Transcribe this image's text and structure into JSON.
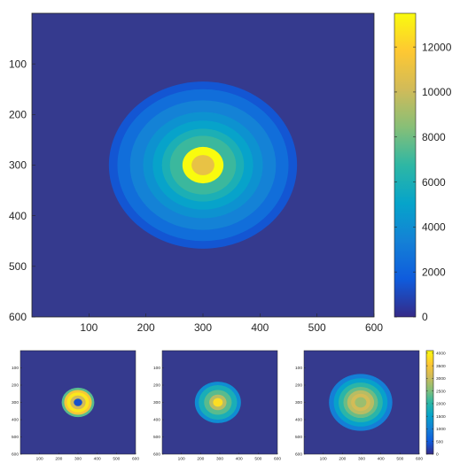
{
  "colors": {
    "background": "#353A8E",
    "colormap": [
      "#352A87",
      "#0F5CDD",
      "#1481D6",
      "#06A4CA",
      "#2EB7A4",
      "#87BF77",
      "#D1BB59",
      "#FEC832",
      "#F9FB0E"
    ]
  },
  "chart_data": [
    {
      "type": "heatmap",
      "description_kind": "radial-intensity",
      "xlim": [
        0,
        600
      ],
      "ylim": [
        0,
        600
      ],
      "y_reversed": true,
      "x_ticks": [
        "100",
        "200",
        "300",
        "400",
        "500",
        "600"
      ],
      "y_ticks": [
        "100",
        "200",
        "300",
        "400",
        "500",
        "600"
      ],
      "clim": [
        0,
        13500
      ],
      "colorbar_ticks": [
        "0",
        "2000",
        "4000",
        "6000",
        "8000",
        "10000",
        "12000"
      ],
      "center": [
        300,
        300
      ],
      "rings": [
        {
          "outer_radius": 165,
          "value": 1500
        },
        {
          "outer_radius": 150,
          "value": 2500
        },
        {
          "outer_radius": 128,
          "value": 3400
        },
        {
          "outer_radius": 105,
          "value": 4200
        },
        {
          "outer_radius": 88,
          "value": 5000
        },
        {
          "outer_radius": 72,
          "value": 6000
        },
        {
          "outer_radius": 58,
          "value": 7000
        },
        {
          "outer_radius": 36,
          "value": 13500
        },
        {
          "outer_radius": 20,
          "value": 11000
        }
      ]
    },
    {
      "type": "heatmap",
      "description_kind": "annulus",
      "xlim": [
        0,
        600
      ],
      "ylim": [
        0,
        600
      ],
      "y_reversed": true,
      "x_ticks": [
        "100",
        "200",
        "300",
        "400",
        "500",
        "600"
      ],
      "y_ticks": [
        "100",
        "200",
        "300",
        "400",
        "500",
        "600"
      ],
      "center": [
        300,
        300
      ],
      "rings": [
        {
          "outer_radius": 85,
          "value": 2300
        },
        {
          "outer_radius": 72,
          "value": 3500
        },
        {
          "outer_radius": 58,
          "value": 3900
        },
        {
          "outer_radius": 40,
          "value": 3100
        },
        {
          "outer_radius": 22,
          "value": 400
        }
      ]
    },
    {
      "type": "heatmap",
      "description_kind": "radial-intensity",
      "xlim": [
        0,
        600
      ],
      "ylim": [
        0,
        600
      ],
      "y_reversed": true,
      "x_ticks": [
        "100",
        "200",
        "300",
        "400",
        "500",
        "600"
      ],
      "y_ticks": [
        "100",
        "200",
        "300",
        "400",
        "500",
        "600"
      ],
      "center": [
        290,
        300
      ],
      "rings": [
        {
          "outer_radius": 120,
          "value": 1200
        },
        {
          "outer_radius": 100,
          "value": 1800
        },
        {
          "outer_radius": 72,
          "value": 2300
        },
        {
          "outer_radius": 45,
          "value": 2900
        },
        {
          "outer_radius": 25,
          "value": 3800
        }
      ]
    },
    {
      "type": "heatmap",
      "description_kind": "radial-intensity",
      "xlim": [
        0,
        600
      ],
      "ylim": [
        0,
        600
      ],
      "y_reversed": true,
      "x_ticks": [
        "100",
        "200",
        "300",
        "400",
        "500",
        "600"
      ],
      "y_ticks": [
        "100",
        "200",
        "300",
        "400",
        "500",
        "600"
      ],
      "clim": [
        0,
        4100
      ],
      "colorbar_ticks": [
        "0",
        "500",
        "1000",
        "1500",
        "2000",
        "2500",
        "3000",
        "3500",
        "4000"
      ],
      "center": [
        295,
        300
      ],
      "rings": [
        {
          "outer_radius": 165,
          "value": 1000
        },
        {
          "outer_radius": 140,
          "value": 1500
        },
        {
          "outer_radius": 115,
          "value": 2000
        },
        {
          "outer_radius": 90,
          "value": 2400
        },
        {
          "outer_radius": 70,
          "value": 2900
        },
        {
          "outer_radius": 50,
          "value": 3100
        },
        {
          "outer_radius": 30,
          "value": 2700
        }
      ]
    }
  ]
}
